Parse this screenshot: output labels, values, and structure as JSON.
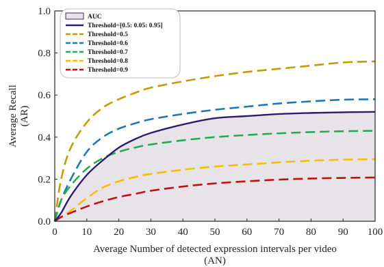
{
  "chart_data": {
    "type": "line",
    "xlabel": [
      "Average Number of detected expression intervals per video",
      "(AN)"
    ],
    "ylabel": [
      "Average Recall",
      "(AR)"
    ],
    "xlim": [
      0,
      100
    ],
    "ylim": [
      0,
      1.0
    ],
    "xticks": [
      0,
      10,
      20,
      30,
      40,
      50,
      60,
      70,
      80,
      90,
      100
    ],
    "yticks": [
      "0.0",
      "0.2",
      "0.4",
      "0.6",
      "0.8",
      "1.0"
    ],
    "legend_position": "top-left",
    "grid": false,
    "area": {
      "name": "AUC",
      "color": "#e8e3e8",
      "edge": "#3a2a6a",
      "follows": "Threshold=[0.5: 0.05: 0.95]"
    },
    "series": [
      {
        "name": "Threshold=[0.5: 0.05: 0.95]",
        "color": "#2e1a6e",
        "dash": "solid",
        "x": [
          0,
          2,
          5,
          10,
          15,
          20,
          25,
          30,
          40,
          50,
          60,
          70,
          80,
          90,
          100
        ],
        "y": [
          0.0,
          0.04,
          0.12,
          0.22,
          0.29,
          0.35,
          0.39,
          0.42,
          0.46,
          0.49,
          0.5,
          0.51,
          0.515,
          0.518,
          0.52
        ]
      },
      {
        "name": "Threshold=0.5",
        "color": "#c49a00",
        "dash": "long",
        "x": [
          0,
          2,
          5,
          10,
          15,
          20,
          25,
          30,
          40,
          50,
          60,
          70,
          80,
          90,
          100
        ],
        "y": [
          0.0,
          0.2,
          0.35,
          0.47,
          0.54,
          0.58,
          0.61,
          0.635,
          0.665,
          0.69,
          0.71,
          0.725,
          0.74,
          0.755,
          0.76
        ]
      },
      {
        "name": "Threshold=0.6",
        "color": "#1f77b4",
        "dash": "long",
        "x": [
          0,
          2,
          5,
          10,
          15,
          20,
          25,
          30,
          40,
          50,
          60,
          70,
          80,
          90,
          100
        ],
        "y": [
          0.0,
          0.1,
          0.2,
          0.33,
          0.4,
          0.44,
          0.465,
          0.485,
          0.51,
          0.53,
          0.545,
          0.56,
          0.57,
          0.578,
          0.58
        ]
      },
      {
        "name": "Threshold=0.7",
        "color": "#22aa55",
        "dash": "long",
        "x": [
          0,
          2,
          5,
          10,
          15,
          20,
          25,
          30,
          40,
          50,
          60,
          70,
          80,
          90,
          100
        ],
        "y": [
          0.0,
          0.1,
          0.17,
          0.25,
          0.3,
          0.33,
          0.35,
          0.365,
          0.385,
          0.4,
          0.41,
          0.418,
          0.424,
          0.428,
          0.43
        ]
      },
      {
        "name": "Threshold=0.8",
        "color": "#f5c000",
        "dash": "long",
        "x": [
          0,
          2,
          5,
          10,
          15,
          20,
          25,
          30,
          40,
          50,
          60,
          70,
          80,
          90,
          100
        ],
        "y": [
          0.0,
          0.02,
          0.05,
          0.11,
          0.16,
          0.19,
          0.21,
          0.225,
          0.245,
          0.26,
          0.27,
          0.28,
          0.288,
          0.293,
          0.295
        ]
      },
      {
        "name": "Threshold=0.9",
        "color": "#c01010",
        "dash": "long",
        "x": [
          0,
          2,
          5,
          10,
          15,
          20,
          25,
          30,
          40,
          50,
          60,
          70,
          80,
          90,
          100
        ],
        "y": [
          0.0,
          0.02,
          0.04,
          0.07,
          0.095,
          0.115,
          0.13,
          0.145,
          0.165,
          0.18,
          0.19,
          0.198,
          0.203,
          0.206,
          0.208
        ]
      }
    ]
  }
}
